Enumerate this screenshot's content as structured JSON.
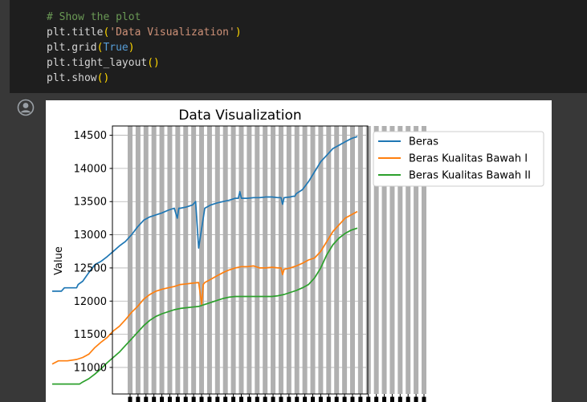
{
  "code_cell": {
    "lines": [
      [
        {
          "t": "comment",
          "v": "# Show the plot"
        }
      ],
      [
        {
          "t": "plain",
          "v": "plt.title"
        },
        {
          "t": "paren",
          "v": "("
        },
        {
          "t": "string",
          "v": "'Data Visualization'"
        },
        {
          "t": "paren",
          "v": ")"
        }
      ],
      [
        {
          "t": "plain",
          "v": "plt.grid"
        },
        {
          "t": "paren",
          "v": "("
        },
        {
          "t": "kw",
          "v": "True"
        },
        {
          "t": "paren",
          "v": ")"
        }
      ],
      [
        {
          "t": "plain",
          "v": "plt.tight_layout"
        },
        {
          "t": "paren",
          "v": "()"
        }
      ],
      [
        {
          "t": "plain",
          "v": "plt.show"
        },
        {
          "t": "paren",
          "v": "()"
        }
      ]
    ]
  },
  "output": {
    "icon": "user-circle-icon"
  },
  "chart_data": {
    "type": "line",
    "title": "Data Visualization",
    "xlabel": "",
    "ylabel": "Value",
    "ylim": [
      10600,
      14640
    ],
    "yticks": [
      11000,
      11500,
      12000,
      12500,
      13000,
      13500,
      14000,
      14500
    ],
    "x_tick_count": 38,
    "grid": true,
    "legend_position": "upper right (outside)",
    "colors": {
      "Beras": "#1f77b4",
      "Beras Kualitas Bawah I": "#ff7f0e",
      "Beras Kualitas Bawah II": "#2ca02c",
      "background": "#ffffff",
      "gridline": "#b0b0b0",
      "page": "#383838",
      "code_background": "#1e1e1e"
    },
    "series": [
      {
        "name": "Beras",
        "x": [
          0,
          3,
          4,
          4.5,
          8,
          8.5,
          10,
          12,
          14,
          16,
          18,
          20,
          22,
          24,
          26,
          28,
          30,
          32,
          34,
          36,
          38,
          40,
          41,
          41.5,
          42,
          44,
          46,
          47,
          48,
          50,
          52,
          54,
          56,
          58,
          60,
          61,
          61.5,
          62,
          64,
          66,
          68,
          70,
          72,
          74,
          75,
          75.5,
          76,
          78,
          79,
          79.5,
          80,
          82,
          84,
          86,
          88,
          90,
          92,
          94,
          96,
          98,
          100
        ],
        "values": [
          12150,
          12150,
          12200,
          12200,
          12200,
          12250,
          12300,
          12430,
          12550,
          12600,
          12670,
          12750,
          12830,
          12900,
          13000,
          13120,
          13220,
          13270,
          13300,
          13330,
          13370,
          13400,
          13250,
          13400,
          13400,
          13420,
          13450,
          13500,
          12800,
          13400,
          13450,
          13480,
          13500,
          13520,
          13550,
          13550,
          13650,
          13550,
          13550,
          13560,
          13560,
          13570,
          13570,
          13560,
          13560,
          13460,
          13560,
          13570,
          13580,
          13580,
          13620,
          13680,
          13800,
          13950,
          14100,
          14200,
          14300,
          14350,
          14400,
          14450,
          14480
        ]
      },
      {
        "name": "Beras Kualitas Bawah I",
        "x": [
          0,
          2,
          5,
          8,
          10,
          12,
          14,
          16,
          18,
          20,
          22,
          24,
          26,
          28,
          30,
          32,
          34,
          36,
          38,
          40,
          42,
          44,
          46,
          48,
          49,
          49.5,
          50,
          52,
          54,
          56,
          58,
          60,
          62,
          64,
          66,
          68,
          70,
          72,
          74,
          75,
          75.5,
          76,
          78,
          80,
          82,
          84,
          86,
          88,
          90,
          92,
          94,
          96,
          98,
          100
        ],
        "values": [
          11050,
          11100,
          11100,
          11120,
          11150,
          11200,
          11300,
          11380,
          11450,
          11550,
          11620,
          11720,
          11830,
          11920,
          12030,
          12100,
          12150,
          12180,
          12200,
          12220,
          12250,
          12260,
          12270,
          12280,
          11950,
          12250,
          12280,
          12330,
          12380,
          12430,
          12470,
          12500,
          12520,
          12520,
          12530,
          12500,
          12500,
          12510,
          12500,
          12500,
          12400,
          12480,
          12500,
          12530,
          12570,
          12620,
          12650,
          12750,
          12900,
          13050,
          13150,
          13250,
          13300,
          13350
        ]
      },
      {
        "name": "Beras Kualitas Bawah II",
        "x": [
          0,
          3,
          6,
          9,
          10,
          12,
          14,
          16,
          18,
          20,
          22,
          24,
          26,
          28,
          30,
          32,
          34,
          36,
          38,
          40,
          42,
          44,
          46,
          48,
          50,
          52,
          54,
          56,
          58,
          60,
          62,
          64,
          66,
          68,
          70,
          72,
          74,
          76,
          78,
          80,
          82,
          84,
          86,
          88,
          90,
          92,
          94,
          96,
          98,
          100
        ],
        "values": [
          10750,
          10750,
          10750,
          10750,
          10780,
          10830,
          10900,
          10980,
          11070,
          11150,
          11230,
          11330,
          11430,
          11530,
          11630,
          11710,
          11770,
          11810,
          11840,
          11870,
          11890,
          11900,
          11910,
          11920,
          11950,
          11980,
          12010,
          12040,
          12060,
          12070,
          12070,
          12070,
          12070,
          12070,
          12070,
          12070,
          12080,
          12100,
          12130,
          12160,
          12200,
          12250,
          12350,
          12500,
          12700,
          12850,
          12950,
          13020,
          13070,
          13100
        ]
      }
    ]
  }
}
